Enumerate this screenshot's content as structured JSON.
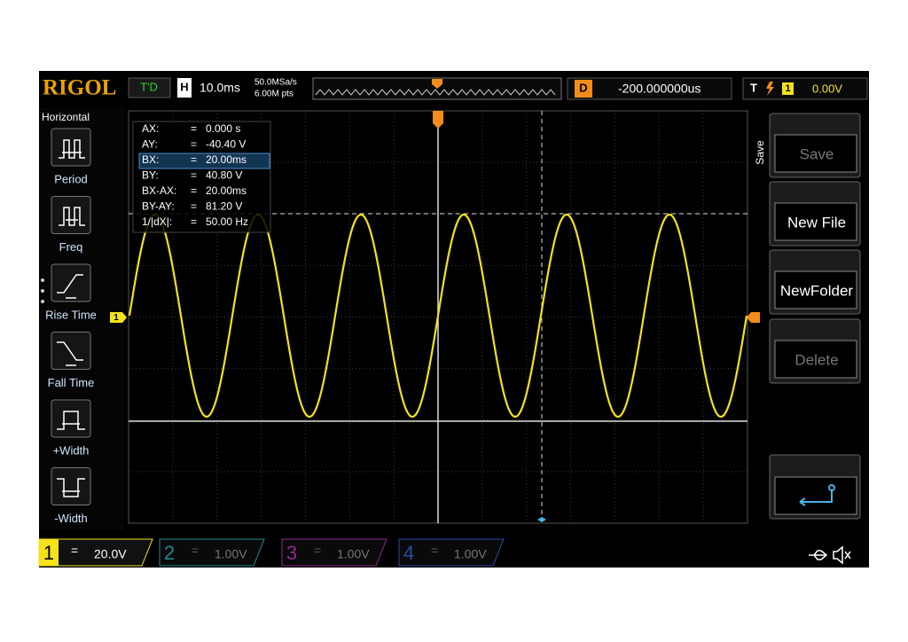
{
  "header": {
    "logo": "RIGOL",
    "status": "T'D",
    "timebase_label": "H",
    "timebase": "10.0ms",
    "sample_rate": "50.0MSa/s",
    "memory_depth": "6.00M pts",
    "delay_label": "D",
    "delay": "-200.000000us",
    "trigger_label": "T",
    "trigger_source": "1",
    "trigger_level": "0.00V"
  },
  "left_menu": {
    "title": "Horizontal",
    "items": [
      "Period",
      "Freq",
      "Rise Time",
      "Fall Time",
      "+Width",
      "-Width"
    ]
  },
  "cursor_readout": {
    "rows": [
      [
        "AX:",
        "=",
        "0.000 s"
      ],
      [
        "AY:",
        "=",
        "-40.40 V"
      ],
      [
        "BX:",
        "=",
        "20.00ms"
      ],
      [
        "BY:",
        "=",
        "40.80 V"
      ],
      [
        "BX-AX:",
        "=",
        "20.00ms"
      ],
      [
        "BY-AY:",
        "=",
        "81.20 V"
      ],
      [
        "1/|dX|:",
        "=",
        "50.00 Hz"
      ]
    ]
  },
  "markers": {
    "channel": "1"
  },
  "right_menu": {
    "title": "Save",
    "items": [
      "Save",
      "New File",
      "NewFolder",
      "Delete"
    ]
  },
  "channels": [
    {
      "number": "1",
      "coupling": "=",
      "scale": "20.0V"
    },
    {
      "number": "2",
      "coupling": "=",
      "scale": "1.00V"
    },
    {
      "number": "3",
      "coupling": "=",
      "scale": "1.00V"
    },
    {
      "number": "4",
      "coupling": "=",
      "scale": "1.00V"
    }
  ]
}
